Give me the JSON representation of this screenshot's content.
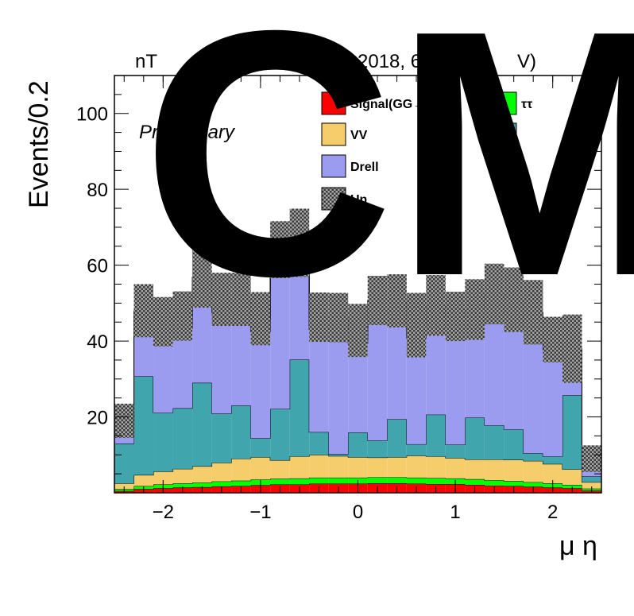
{
  "chart_data": {
    "type": "bar",
    "stacked": true,
    "header_left": "nT",
    "header_right": "2018, 60 fb",
    "header_sup": "-1",
    "header_right_tail": " (",
    "header_right_end": "V)",
    "watermark": "CM",
    "annotation": "Preliminary",
    "xlabel": "μ η",
    "ylabel": "Events/0.2",
    "xlim": [
      -2.5,
      2.5
    ],
    "ylim": [
      0,
      110
    ],
    "xticks": [
      "−2",
      "−1",
      "0",
      "1",
      "2"
    ],
    "xtick_values": [
      -2,
      -1,
      0,
      1,
      2
    ],
    "yticks": [
      "20",
      "40",
      "60",
      "80",
      "100"
    ],
    "ytick_values": [
      20,
      40,
      60,
      80,
      100
    ],
    "bin_edges": [
      -2.5,
      -2.3,
      -2.1,
      -1.9,
      -1.7,
      -1.5,
      -1.3,
      -1.1,
      -0.9,
      -0.7,
      -0.5,
      -0.3,
      -0.1,
      0.1,
      0.3,
      0.5,
      0.7,
      0.9,
      1.1,
      1.3,
      1.5,
      1.7,
      1.9,
      2.1,
      2.3,
      2.5
    ],
    "series": [
      {
        "name": "Signal(GG→ WW)",
        "color": "#ff0000",
        "values": [
          0.5,
          1.0,
          1.2,
          1.4,
          1.5,
          1.7,
          1.8,
          2.0,
          2.2,
          2.2,
          2.4,
          2.4,
          2.4,
          2.5,
          2.5,
          2.4,
          2.3,
          2.3,
          2.1,
          1.9,
          1.8,
          1.6,
          1.4,
          1.2,
          0.6
        ]
      },
      {
        "name": "",
        "color": "#00ff00",
        "values": [
          0.5,
          0.8,
          1.0,
          1.1,
          1.2,
          1.3,
          1.4,
          1.5,
          1.5,
          1.6,
          1.6,
          1.6,
          1.6,
          1.6,
          1.6,
          1.6,
          1.6,
          1.5,
          1.5,
          1.4,
          1.3,
          1.2,
          1.1,
          0.9,
          0.5
        ]
      },
      {
        "name": "VV",
        "color": "#f5cd6b",
        "values": [
          1.5,
          2.9,
          3.4,
          3.8,
          4.3,
          4.9,
          5.8,
          5.9,
          4.9,
          5.8,
          6.0,
          5.7,
          5.4,
          5.2,
          5.3,
          5.8,
          5.7,
          5.4,
          5.2,
          5.5,
          5.6,
          5.6,
          5.1,
          4.1,
          1.7
        ]
      },
      {
        "name": "",
        "color": "#40a5ad",
        "values": [
          10.5,
          26.0,
          15.5,
          16.0,
          22.0,
          13.0,
          14.0,
          5.0,
          13.5,
          25.5,
          6.0,
          0.5,
          6.5,
          4.5,
          10.0,
          3.0,
          11.0,
          3.5,
          11.0,
          9.0,
          8.0,
          2.0,
          2.0,
          19.5,
          1.5
        ]
      },
      {
        "name": "Drell",
        "color": "#9b9cef",
        "values": [
          4.0,
          14.5,
          21.0,
          21.0,
          24.0,
          26.5,
          24.5,
          28.0,
          38.5,
          27.5,
          27.0,
          33.0,
          23.5,
          33.5,
          28.0,
          28.0,
          25.5,
          30.5,
          25.0,
          31.0,
          30.5,
          33.5,
          28.0,
          9.5,
          4.0
        ]
      },
      {
        "name": "",
        "color": "#57575c",
        "values": [
          0.5,
          0.8,
          0.8,
          0.9,
          1.0,
          1.0,
          1.1,
          1.1,
          1.0,
          1.1,
          1.1,
          1.0,
          1.0,
          1.0,
          1.0,
          1.0,
          1.0,
          1.0,
          1.0,
          1.0,
          1.0,
          1.0,
          0.8,
          0.6,
          0.2
        ]
      },
      {
        "name": "Un",
        "color": "#b4b4b4",
        "values": [
          1.5,
          2.0,
          2.2,
          2.4,
          2.8,
          2.6,
          2.4,
          2.4,
          2.5,
          2.2,
          2.2,
          2.0,
          2.4,
          2.4,
          2.2,
          2.4,
          2.3,
          2.3,
          2.5,
          2.6,
          2.7,
          2.7,
          2.0,
          2.2,
          0.5
        ]
      }
    ],
    "uncertainty": [
      4.5,
      7.0,
      6.5,
      6.5,
      8.0,
      7.0,
      7.0,
      7.0,
      7.5,
      9.0,
      6.5,
      6.5,
      7.0,
      6.5,
      7.0,
      8.5,
      8.0,
      6.5,
      8.0,
      8.0,
      8.5,
      8.5,
      6.0,
      9.0,
      3.5
    ],
    "legend": [
      {
        "label": "Signal(GG→ WW)",
        "color": "#ff0000"
      },
      {
        "label": "ττ",
        "color": "#00ff00"
      },
      {
        "label": "VV",
        "color": "#f5cd6b"
      },
      {
        "label": "",
        "color": "#40a5ad"
      },
      {
        "label": "Drell",
        "color": "#9b9cef"
      },
      {
        "label": "",
        "color": "#57575c"
      },
      {
        "label": "Un",
        "color": "#b4b4b4",
        "hatched": true
      }
    ],
    "legend_placement": "top-right",
    "grid": false
  }
}
